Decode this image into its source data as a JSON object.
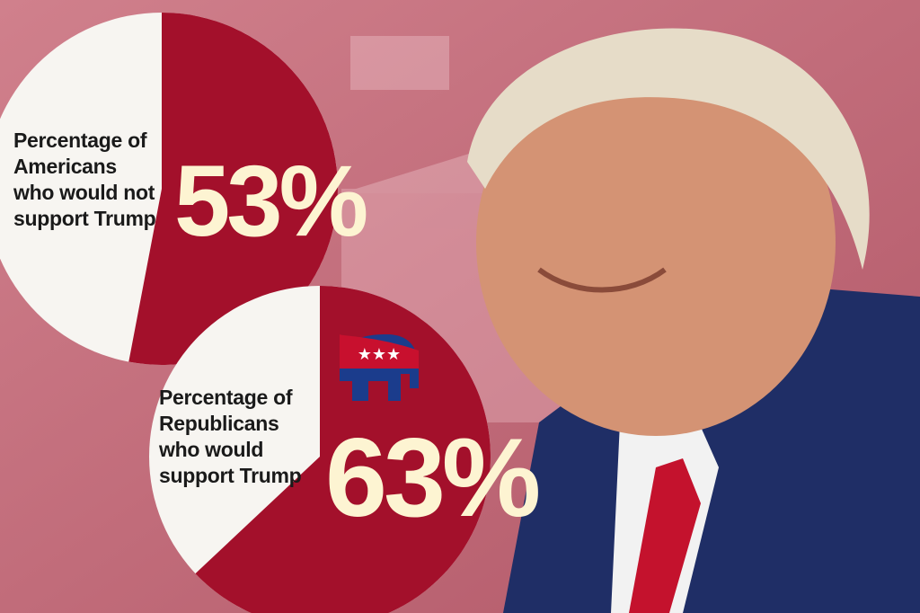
{
  "chart_data": [
    {
      "type": "pie",
      "categories": [
        "Percentage of Americans who would not support Trump"
      ],
      "values": [
        53
      ],
      "value_labels": [
        "53%"
      ],
      "color": "#a3102b"
    },
    {
      "type": "pie",
      "categories": [
        "Percentage of Republicans who would support Trump"
      ],
      "values": [
        63
      ],
      "value_labels": [
        "63%"
      ],
      "color": "#a3102b"
    }
  ]
}
